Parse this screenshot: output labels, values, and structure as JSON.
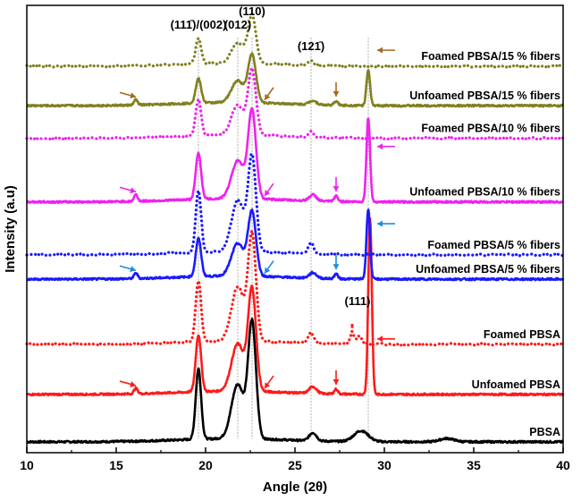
{
  "chart_data": {
    "type": "line",
    "title": "",
    "xlabel": "Angle (2θ)",
    "ylabel": "Intensity (a.u)",
    "xlim": [
      10,
      40
    ],
    "x_ticks": [
      "10",
      "15",
      "20",
      "25",
      "30",
      "35",
      "40"
    ],
    "y_ticks_shown": false,
    "peak_labels": [
      {
        "text": "(111̄)/(002)",
        "x": 19.6
      },
      {
        "text": "(012)",
        "x": 21.8
      },
      {
        "text": "(110)",
        "x": 22.6
      },
      {
        "text": "(121̄)",
        "x": 25.9
      },
      {
        "text": "(111)",
        "x": 28.5
      }
    ],
    "reference_lines_x": [
      19.6,
      21.8,
      22.6,
      25.9,
      29.1
    ],
    "series": [
      {
        "name": "PBSA",
        "color": "#000000",
        "style": "solid",
        "baseline": 0.8,
        "peaks": [
          [
            19.6,
            5.2,
            0.15
          ],
          [
            21.8,
            4.0,
            0.35
          ],
          [
            22.6,
            8.5,
            0.22
          ],
          [
            26.0,
            0.6,
            0.2
          ],
          [
            28.7,
            0.8,
            0.4
          ],
          [
            33.5,
            0.25,
            0.4
          ]
        ]
      },
      {
        "name": "Unfoamed PBSA",
        "color": "#ff1a1a",
        "style": "solid",
        "baseline": 4.3,
        "peaks": [
          [
            16.1,
            0.4,
            0.1
          ],
          [
            19.6,
            4.2,
            0.15
          ],
          [
            21.8,
            3.5,
            0.35
          ],
          [
            22.6,
            7.5,
            0.22
          ],
          [
            26.0,
            0.5,
            0.2
          ],
          [
            27.3,
            0.35,
            0.1
          ],
          [
            29.2,
            13.0,
            0.1
          ]
        ]
      },
      {
        "name": "Foamed PBSA",
        "color": "#ff1a1a",
        "style": "dotted",
        "baseline": 8.0,
        "peaks": [
          [
            19.6,
            4.5,
            0.15
          ],
          [
            21.8,
            4.0,
            0.35
          ],
          [
            22.6,
            7.8,
            0.22
          ],
          [
            25.9,
            0.8,
            0.15
          ],
          [
            28.2,
            0.9,
            0.1
          ],
          [
            28.6,
            0.6,
            0.15
          ]
        ]
      },
      {
        "name": "Unfoamed PBSA/5 % fibers",
        "color": "#1a1aff",
        "style": "solid",
        "baseline": 12.8,
        "peaks": [
          [
            16.1,
            0.4,
            0.1
          ],
          [
            19.6,
            2.8,
            0.15
          ],
          [
            21.8,
            2.4,
            0.35
          ],
          [
            22.6,
            4.7,
            0.22
          ],
          [
            26.0,
            0.4,
            0.2
          ],
          [
            27.3,
            0.35,
            0.1
          ],
          [
            29.1,
            5.2,
            0.1
          ]
        ]
      },
      {
        "name": "Foamed PBSA/5 % fibers",
        "color": "#1a1aff",
        "style": "dotted",
        "baseline": 14.6,
        "peaks": [
          [
            19.6,
            4.6,
            0.15
          ],
          [
            21.8,
            3.8,
            0.35
          ],
          [
            22.6,
            7.0,
            0.22
          ],
          [
            25.9,
            0.8,
            0.15
          ]
        ]
      },
      {
        "name": "Unfoamed PBSA/10 % fibers",
        "color": "#ee22ee",
        "style": "solid",
        "baseline": 18.5,
        "peaks": [
          [
            16.1,
            0.5,
            0.1
          ],
          [
            19.6,
            3.4,
            0.15
          ],
          [
            21.8,
            2.8,
            0.35
          ],
          [
            22.6,
            6.5,
            0.22
          ],
          [
            26.0,
            0.45,
            0.2
          ],
          [
            27.3,
            0.4,
            0.1
          ],
          [
            29.1,
            6.2,
            0.1
          ]
        ]
      },
      {
        "name": "Foamed PBSA/10 % fibers",
        "color": "#ee22ee",
        "style": "dotted",
        "baseline": 23.2,
        "peaks": [
          [
            19.6,
            2.7,
            0.15
          ],
          [
            21.8,
            2.2,
            0.35
          ],
          [
            22.6,
            4.8,
            0.22
          ],
          [
            25.9,
            0.4,
            0.15
          ]
        ]
      },
      {
        "name": "Unfoamed PBSA/15 % fibers",
        "color": "#808020",
        "style": "solid",
        "baseline": 25.6,
        "peaks": [
          [
            16.1,
            0.4,
            0.1
          ],
          [
            19.6,
            1.8,
            0.15
          ],
          [
            21.8,
            1.6,
            0.35
          ],
          [
            22.6,
            3.5,
            0.22
          ],
          [
            26.0,
            0.3,
            0.2
          ],
          [
            27.3,
            0.3,
            0.1
          ],
          [
            29.1,
            2.6,
            0.1
          ]
        ]
      },
      {
        "name": "Foamed PBSA/15 % fibers",
        "color": "#808020",
        "style": "dotted",
        "baseline": 28.5,
        "peaks": [
          [
            19.6,
            1.9,
            0.15
          ],
          [
            21.8,
            1.5,
            0.35
          ],
          [
            22.6,
            3.5,
            0.22
          ],
          [
            25.9,
            0.3,
            0.15
          ]
        ]
      }
    ],
    "annotation_arrows": [
      {
        "series": "Unfoamed PBSA",
        "color": "#ff1a1a",
        "x": 16.1,
        "dir": "right"
      },
      {
        "series": "Unfoamed PBSA",
        "color": "#ff1a1a",
        "x": 23.3,
        "dir": "downleft"
      },
      {
        "series": "Unfoamed PBSA",
        "color": "#ff1a1a",
        "x": 27.3,
        "dir": "down"
      },
      {
        "series": "Unfoamed PBSA",
        "color": "#ff1a1a",
        "x": 29.6,
        "dir": "left"
      },
      {
        "series": "Unfoamed PBSA/5 % fibers",
        "color": "#1a8ce0",
        "x": 16.1,
        "dir": "right"
      },
      {
        "series": "Unfoamed PBSA/5 % fibers",
        "color": "#1a8ce0",
        "x": 23.3,
        "dir": "downleft"
      },
      {
        "series": "Unfoamed PBSA/5 % fibers",
        "color": "#1a8ce0",
        "x": 27.3,
        "dir": "down"
      },
      {
        "series": "Unfoamed PBSA/5 % fibers",
        "color": "#1a8ce0",
        "x": 29.6,
        "dir": "left"
      },
      {
        "series": "Unfoamed PBSA/10 % fibers",
        "color": "#ee22ee",
        "x": 16.1,
        "dir": "right"
      },
      {
        "series": "Unfoamed PBSA/10 % fibers",
        "color": "#ee22ee",
        "x": 23.3,
        "dir": "downleft"
      },
      {
        "series": "Unfoamed PBSA/10 % fibers",
        "color": "#ee22ee",
        "x": 27.3,
        "dir": "down"
      },
      {
        "series": "Unfoamed PBSA/10 % fibers",
        "color": "#ee22ee",
        "x": 29.6,
        "dir": "left"
      },
      {
        "series": "Unfoamed PBSA/15 % fibers",
        "color": "#a86a1a",
        "x": 16.1,
        "dir": "right"
      },
      {
        "series": "Unfoamed PBSA/15 % fibers",
        "color": "#a86a1a",
        "x": 23.3,
        "dir": "downleft"
      },
      {
        "series": "Unfoamed PBSA/15 % fibers",
        "color": "#a86a1a",
        "x": 27.3,
        "dir": "down"
      },
      {
        "series": "Unfoamed PBSA/15 % fibers",
        "color": "#a86a1a",
        "x": 29.6,
        "dir": "left"
      }
    ],
    "grid": false,
    "legend": "inline labels at right"
  }
}
